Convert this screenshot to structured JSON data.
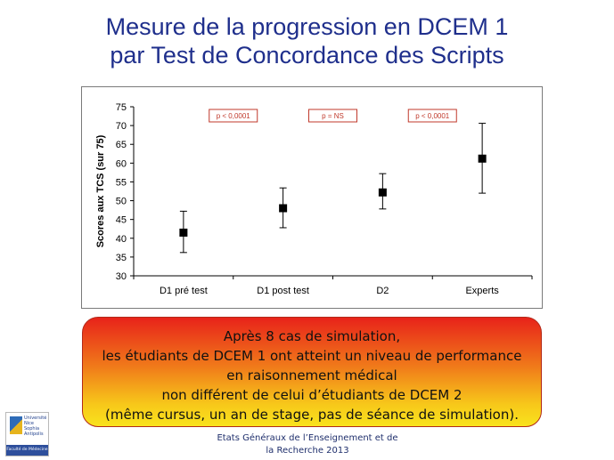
{
  "title": {
    "line1": "Mesure de la progression en DCEM 1",
    "line2": "par Test de Concordance des Scripts"
  },
  "chart_data": {
    "type": "scatter",
    "ylabel": "Scores aux TCS (sur 75)",
    "xlabel": "",
    "ylim": [
      30,
      75
    ],
    "yticks": [
      30,
      35,
      40,
      45,
      50,
      55,
      60,
      65,
      70,
      75
    ],
    "grid": false,
    "categories": [
      "D1 pré test",
      "D1 post test",
      "D2",
      "Experts"
    ],
    "values": [
      41.5,
      48,
      52.2,
      61.2
    ],
    "error_low": [
      36.2,
      42.8,
      47.8,
      52
    ],
    "error_high": [
      47.2,
      53.4,
      57.2,
      70.6
    ],
    "annotations": [
      {
        "text": "p < 0,0001",
        "between": [
          0,
          1
        ]
      },
      {
        "text": "p = NS",
        "between": [
          1,
          2
        ]
      },
      {
        "text": "p  < 0,0001",
        "between": [
          2,
          3
        ]
      }
    ],
    "marker_color": "#000000",
    "annotation_color": "#c0392b"
  },
  "banner": {
    "lines": [
      "Après 8 cas de simulation,",
      "les étudiants de DCEM 1 ont atteint un niveau de performance",
      "en raisonnement médical",
      "non différent de celui d’étudiants de DCEM 2",
      "(même cursus, un an de stage, pas de séance de simulation)."
    ]
  },
  "logo": {
    "text1": "Université",
    "text2": "Nice",
    "text3": "Sophia Antipolis",
    "bar": "Faculté de Médecine"
  },
  "footer": {
    "line1": "Etats Généraux de l’Enseignement et de",
    "line2": "la Recherche 2013"
  }
}
